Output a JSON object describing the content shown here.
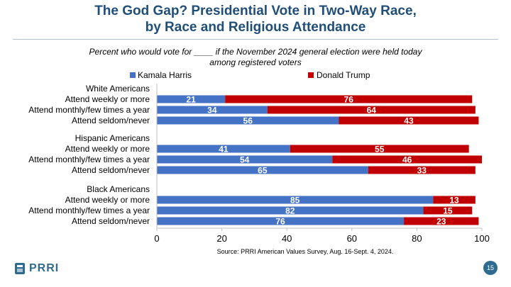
{
  "title_line1": "The God Gap? Presidential Vote in Two-Way Race,",
  "title_line2": "by Race and Religious Attendance",
  "subtitle_line1": "Percent who would vote for ____ if the November 2024 general election were held today",
  "subtitle_line2": "among registered voters",
  "source": "Source: PRRI American Values Survey, Aug. 16-Sept. 4, 2024.",
  "logo_text": "PRRI",
  "page_number": "15",
  "colors": {
    "harris": "#4472c4",
    "trump": "#c00000",
    "title": "#1f4e79",
    "brand": "#2f6b8f"
  },
  "chart_data": {
    "type": "bar",
    "orientation": "horizontal",
    "stacked": true,
    "xlim": [
      0,
      100
    ],
    "xticks": [
      "0",
      "20",
      "40",
      "60",
      "80",
      "100"
    ],
    "legend": [
      "Kamala Harris",
      "Donald Trump"
    ],
    "legend_position": "top",
    "grid": false,
    "groups": [
      {
        "label": "White Americans",
        "rows": [
          {
            "label": "Attend weekly or more",
            "harris": 21,
            "trump": 76
          },
          {
            "label": "Attend monthly/few times a year",
            "harris": 34,
            "trump": 64
          },
          {
            "label": "Attend seldom/never",
            "harris": 56,
            "trump": 43
          }
        ]
      },
      {
        "label": "Hispanic Americans",
        "rows": [
          {
            "label": "Attend weekly or more",
            "harris": 41,
            "trump": 55
          },
          {
            "label": "Attend monthly/few times a year",
            "harris": 54,
            "trump": 46
          },
          {
            "label": "Attend seldom/never",
            "harris": 65,
            "trump": 33
          }
        ]
      },
      {
        "label": "Black Americans",
        "rows": [
          {
            "label": "Attend weekly or more",
            "harris": 85,
            "trump": 13
          },
          {
            "label": "Attend monthly/few times a year",
            "harris": 82,
            "trump": 15
          },
          {
            "label": "Attend seldom/never",
            "harris": 76,
            "trump": 23
          }
        ]
      }
    ]
  }
}
